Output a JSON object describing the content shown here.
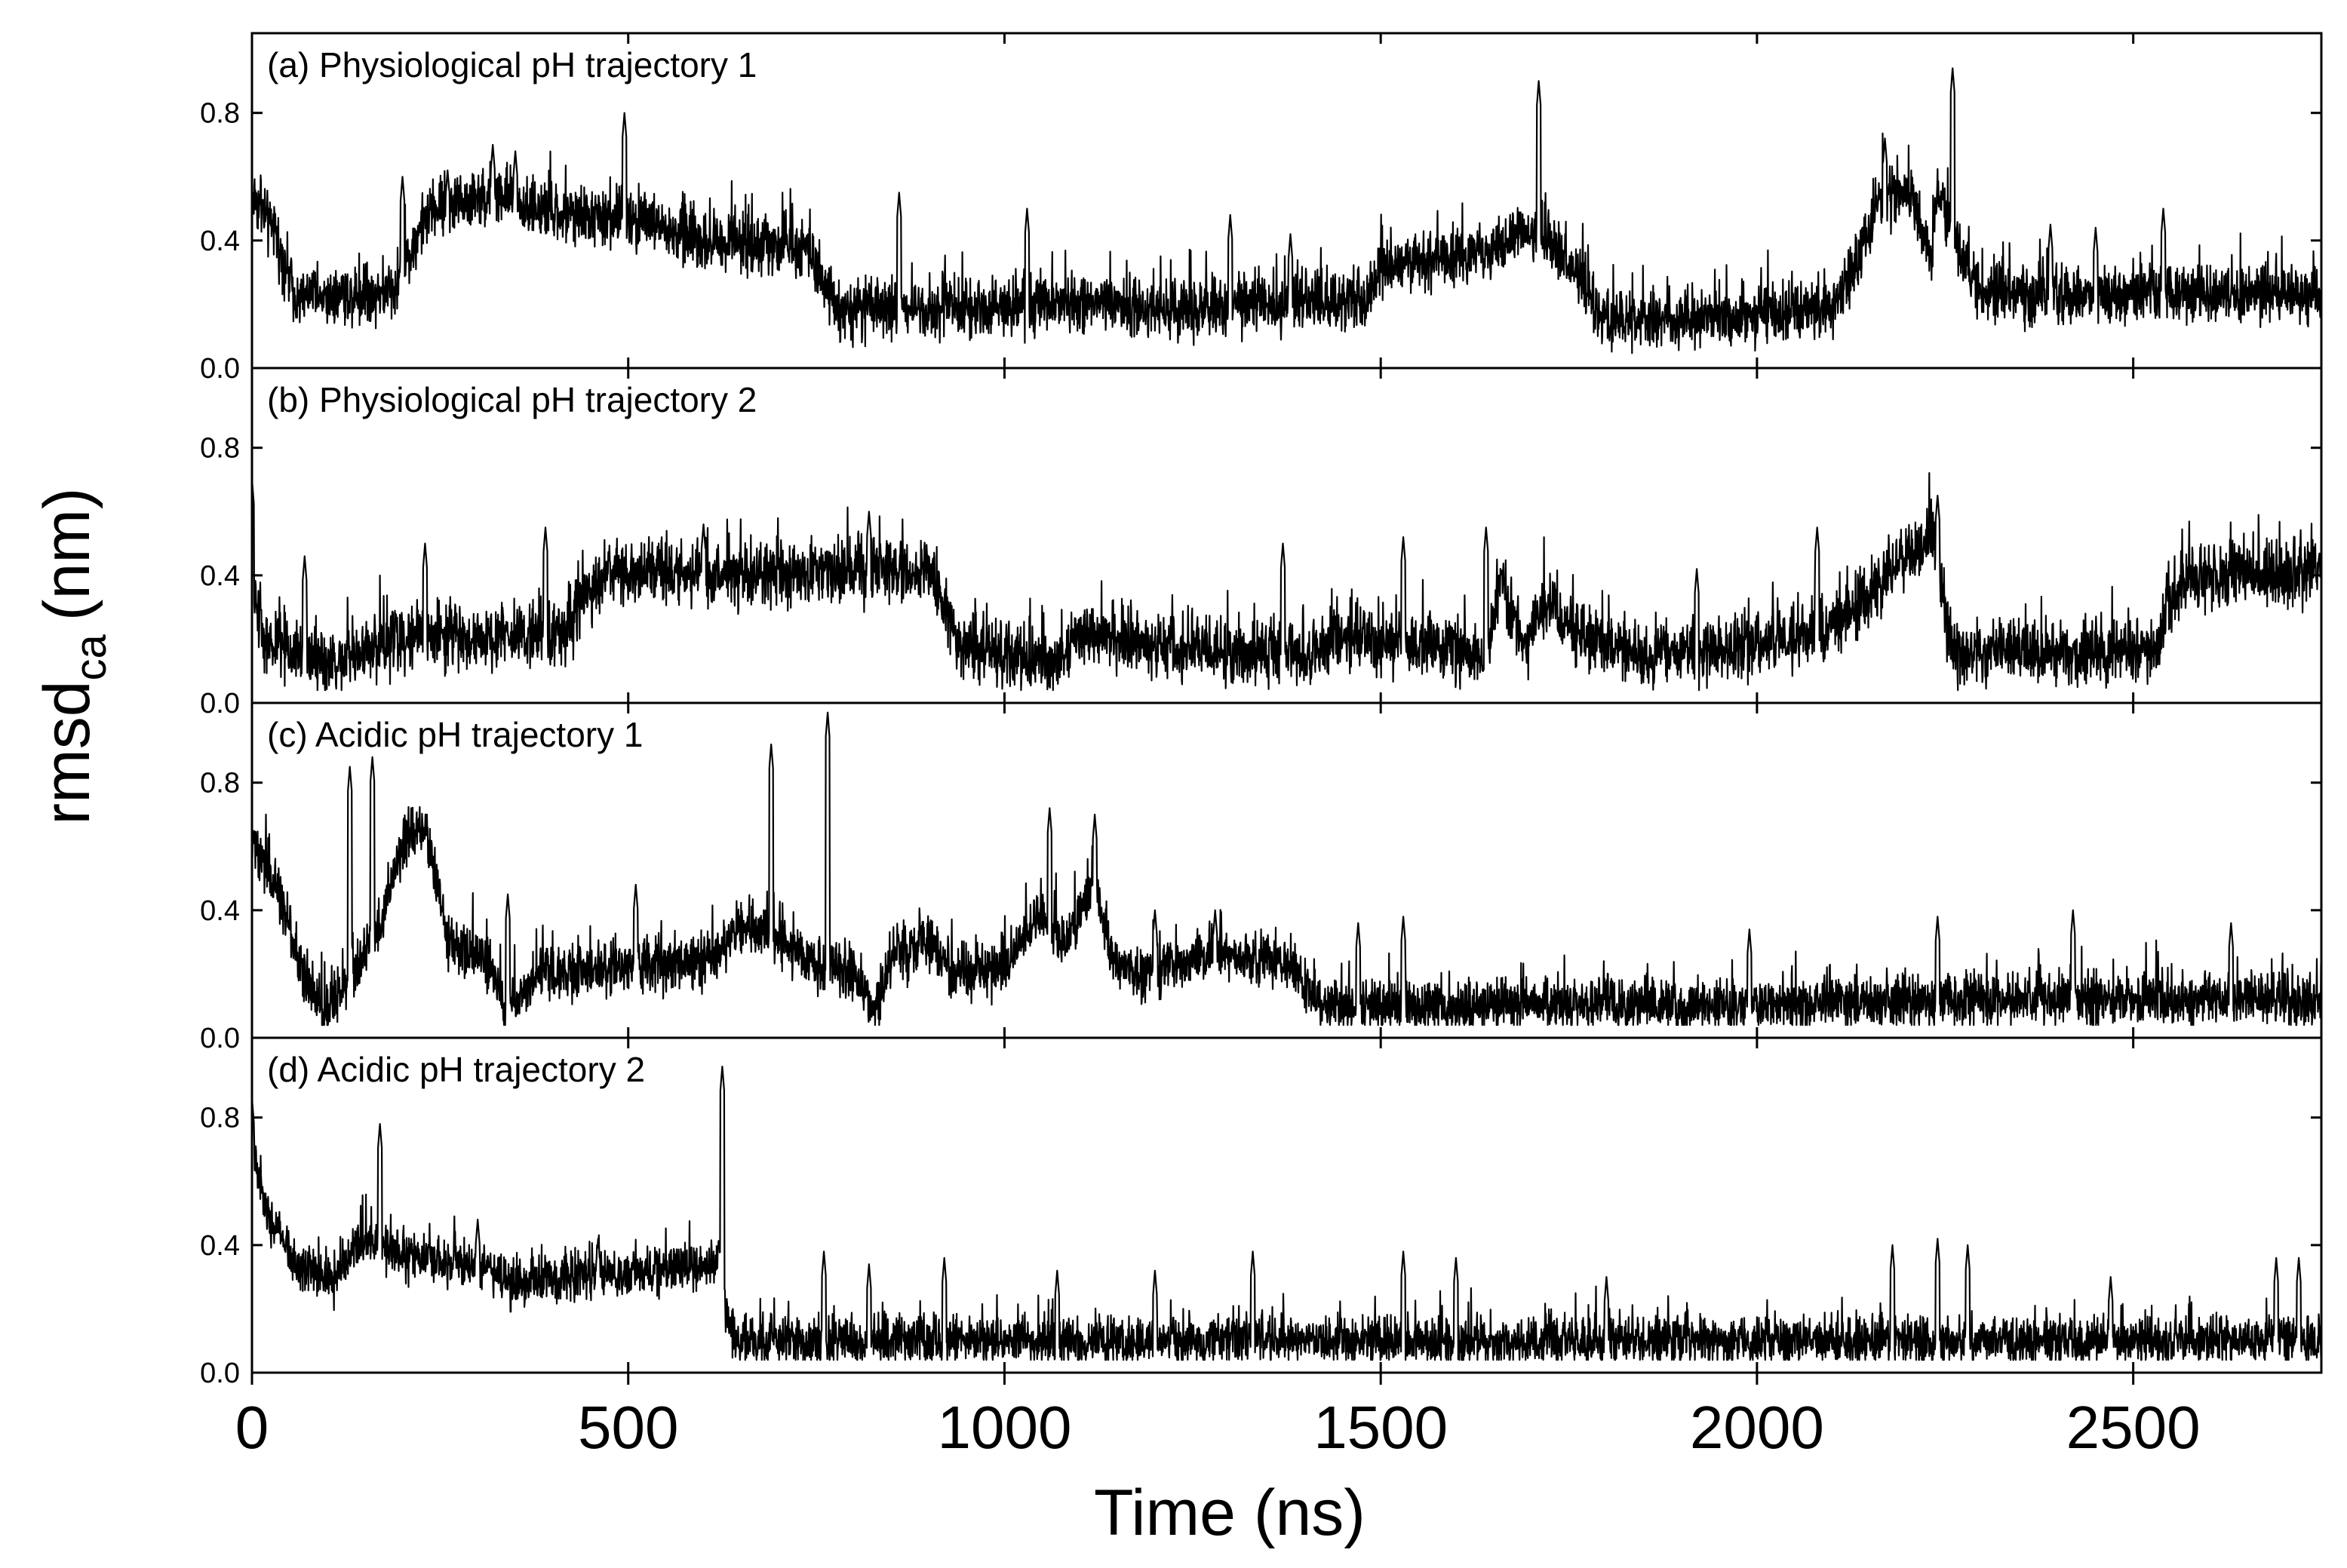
{
  "chart_data": {
    "type": "line",
    "xlabel": "Time (ns)",
    "ylabel_main": "rmsd",
    "ylabel_sub": "ca",
    "ylabel_unit": "(nm)",
    "xlim": [
      0,
      2750
    ],
    "ylim": [
      0,
      1.05
    ],
    "x_ticks": [
      0,
      500,
      1000,
      1500,
      2000,
      2500
    ],
    "x_tick_labels": [
      "0",
      "500",
      "1000",
      "1500",
      "2000",
      "2500"
    ],
    "y_ticks": [
      0.0,
      0.4,
      0.8
    ],
    "y_tick_labels": [
      "0.0",
      "0.4",
      "0.8"
    ],
    "panels": [
      {
        "id": "a",
        "title": "(a) Physiological pH trajectory 1",
        "noise": 0.055,
        "segments": [
          [
            0,
            0.55
          ],
          [
            30,
            0.42
          ],
          [
            60,
            0.22
          ],
          [
            190,
            0.24
          ],
          [
            220,
            0.42
          ],
          [
            240,
            0.5
          ],
          [
            320,
            0.54
          ],
          [
            400,
            0.48
          ],
          [
            520,
            0.46
          ],
          [
            560,
            0.42
          ],
          [
            600,
            0.4
          ],
          [
            740,
            0.38
          ],
          [
            780,
            0.18
          ],
          [
            1100,
            0.2
          ],
          [
            1200,
            0.18
          ],
          [
            1480,
            0.22
          ],
          [
            1500,
            0.32
          ],
          [
            1650,
            0.36
          ],
          [
            1680,
            0.42
          ],
          [
            1730,
            0.4
          ],
          [
            1800,
            0.14
          ],
          [
            2100,
            0.18
          ],
          [
            2140,
            0.36
          ],
          [
            2160,
            0.52
          ],
          [
            2200,
            0.56
          ],
          [
            2230,
            0.34
          ],
          [
            2240,
            0.56
          ],
          [
            2290,
            0.24
          ],
          [
            2750,
            0.23
          ]
        ],
        "spikes": [
          [
            200,
            0.6
          ],
          [
            260,
            0.62
          ],
          [
            320,
            0.7
          ],
          [
            350,
            0.68
          ],
          [
            495,
            0.8
          ],
          [
            1710,
            0.9
          ],
          [
            2170,
            0.72
          ],
          [
            2260,
            0.94
          ],
          [
            2390,
            0.45
          ],
          [
            2450,
            0.44
          ],
          [
            2540,
            0.5
          ],
          [
            860,
            0.55
          ],
          [
            1030,
            0.5
          ],
          [
            1300,
            0.48
          ],
          [
            1380,
            0.42
          ]
        ]
      },
      {
        "id": "b",
        "title": "(b) Physiological pH trajectory 2",
        "noise": 0.06,
        "segments": [
          [
            0,
            0.35
          ],
          [
            20,
            0.18
          ],
          [
            100,
            0.12
          ],
          [
            220,
            0.22
          ],
          [
            300,
            0.2
          ],
          [
            420,
            0.22
          ],
          [
            440,
            0.34
          ],
          [
            480,
            0.4
          ],
          [
            650,
            0.4
          ],
          [
            900,
            0.42
          ],
          [
            940,
            0.18
          ],
          [
            1070,
            0.12
          ],
          [
            1100,
            0.22
          ],
          [
            1200,
            0.18
          ],
          [
            1400,
            0.14
          ],
          [
            1440,
            0.2
          ],
          [
            1560,
            0.18
          ],
          [
            1640,
            0.14
          ],
          [
            1660,
            0.4
          ],
          [
            1690,
            0.16
          ],
          [
            1720,
            0.3
          ],
          [
            1760,
            0.22
          ],
          [
            1850,
            0.14
          ],
          [
            2000,
            0.18
          ],
          [
            2100,
            0.24
          ],
          [
            2150,
            0.34
          ],
          [
            2230,
            0.54
          ],
          [
            2260,
            0.16
          ],
          [
            2530,
            0.16
          ],
          [
            2560,
            0.38
          ],
          [
            2750,
            0.42
          ]
        ],
        "spikes": [
          [
            0,
            0.7
          ],
          [
            70,
            0.46
          ],
          [
            230,
            0.5
          ],
          [
            390,
            0.55
          ],
          [
            600,
            0.56
          ],
          [
            820,
            0.6
          ],
          [
            1370,
            0.5
          ],
          [
            1530,
            0.52
          ],
          [
            1640,
            0.55
          ],
          [
            2080,
            0.55
          ],
          [
            2240,
            0.65
          ],
          [
            1920,
            0.42
          ]
        ]
      },
      {
        "id": "c",
        "title": "(c) Acidic pH trajectory 1",
        "noise": 0.05,
        "segments": [
          [
            0,
            0.62
          ],
          [
            40,
            0.42
          ],
          [
            70,
            0.18
          ],
          [
            100,
            0.08
          ],
          [
            170,
            0.35
          ],
          [
            200,
            0.62
          ],
          [
            230,
            0.66
          ],
          [
            260,
            0.3
          ],
          [
            310,
            0.25
          ],
          [
            340,
            0.08
          ],
          [
            380,
            0.2
          ],
          [
            520,
            0.22
          ],
          [
            600,
            0.24
          ],
          [
            660,
            0.35
          ],
          [
            760,
            0.22
          ],
          [
            800,
            0.2
          ],
          [
            830,
            0.08
          ],
          [
            850,
            0.25
          ],
          [
            900,
            0.3
          ],
          [
            930,
            0.2
          ],
          [
            1000,
            0.22
          ],
          [
            1050,
            0.4
          ],
          [
            1080,
            0.28
          ],
          [
            1120,
            0.5
          ],
          [
            1140,
            0.26
          ],
          [
            1180,
            0.2
          ],
          [
            1260,
            0.26
          ],
          [
            1380,
            0.24
          ],
          [
            1420,
            0.1
          ],
          [
            1900,
            0.1
          ],
          [
            2400,
            0.12
          ],
          [
            2750,
            0.12
          ]
        ],
        "spikes": [
          [
            130,
            0.85
          ],
          [
            160,
            0.88
          ],
          [
            230,
            0.6
          ],
          [
            340,
            0.45
          ],
          [
            510,
            0.48
          ],
          [
            690,
            0.92
          ],
          [
            765,
            1.02
          ],
          [
            1060,
            0.72
          ],
          [
            1120,
            0.7
          ],
          [
            1200,
            0.4
          ],
          [
            1280,
            0.4
          ],
          [
            1470,
            0.36
          ],
          [
            1530,
            0.38
          ],
          [
            1990,
            0.34
          ],
          [
            2240,
            0.38
          ],
          [
            2420,
            0.4
          ],
          [
            2630,
            0.36
          ]
        ]
      },
      {
        "id": "d",
        "title": "(d) Acidic pH trajectory 2",
        "noise": 0.045,
        "segments": [
          [
            0,
            0.7
          ],
          [
            25,
            0.48
          ],
          [
            60,
            0.34
          ],
          [
            110,
            0.3
          ],
          [
            150,
            0.42
          ],
          [
            190,
            0.38
          ],
          [
            250,
            0.34
          ],
          [
            300,
            0.32
          ],
          [
            350,
            0.28
          ],
          [
            450,
            0.3
          ],
          [
            550,
            0.32
          ],
          [
            620,
            0.34
          ],
          [
            640,
            0.1
          ],
          [
            2750,
            0.1
          ]
        ],
        "spikes": [
          [
            0,
            0.86
          ],
          [
            170,
            0.78
          ],
          [
            300,
            0.48
          ],
          [
            460,
            0.42
          ],
          [
            625,
            0.96
          ],
          [
            760,
            0.38
          ],
          [
            820,
            0.34
          ],
          [
            920,
            0.36
          ],
          [
            1070,
            0.32
          ],
          [
            1200,
            0.32
          ],
          [
            1330,
            0.38
          ],
          [
            1530,
            0.38
          ],
          [
            1600,
            0.36
          ],
          [
            1800,
            0.3
          ],
          [
            2180,
            0.4
          ],
          [
            2240,
            0.42
          ],
          [
            2280,
            0.4
          ],
          [
            2470,
            0.3
          ],
          [
            2690,
            0.36
          ],
          [
            2720,
            0.36
          ]
        ]
      }
    ]
  }
}
